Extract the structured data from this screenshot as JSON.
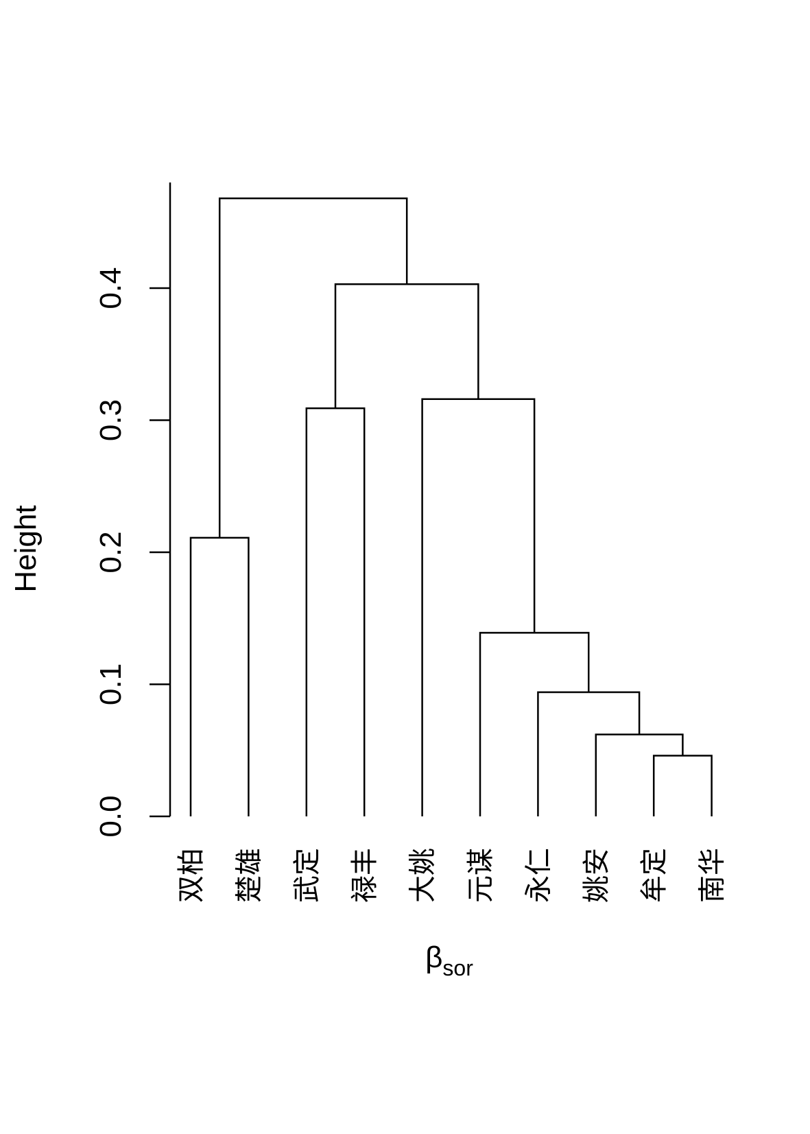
{
  "chart_data": {
    "type": "dendrogram",
    "ylabel": "Height",
    "xlabel_main": "β",
    "xlabel_sub": "sor",
    "ylim": [
      0,
      0.49
    ],
    "yticks": [
      0.0,
      0.1,
      0.2,
      0.3,
      0.4
    ],
    "ytick_labels": [
      "0.0",
      "0.1",
      "0.2",
      "0.3",
      "0.4"
    ],
    "leaves": [
      "双柏",
      "楚雄",
      "武定",
      "禄丰",
      "大姚",
      "元谋",
      "永仁",
      "姚安",
      "牟定",
      "南华"
    ],
    "merges": [
      {
        "left": [
          9
        ],
        "right": [
          10
        ],
        "height": 0.046
      },
      {
        "left": [
          8
        ],
        "right": [
          9,
          10
        ],
        "height": 0.062
      },
      {
        "left": [
          7
        ],
        "right": [
          8,
          9,
          10
        ],
        "height": 0.094
      },
      {
        "left": [
          6
        ],
        "right": [
          7,
          8,
          9,
          10
        ],
        "height": 0.139
      },
      {
        "left": [
          1
        ],
        "right": [
          2
        ],
        "height": 0.211
      },
      {
        "left": [
          3
        ],
        "right": [
          4
        ],
        "height": 0.309
      },
      {
        "left": [
          5
        ],
        "right": [
          6,
          7,
          8,
          9,
          10
        ],
        "height": 0.316
      },
      {
        "left": [
          3,
          4
        ],
        "right": [
          5,
          6,
          7,
          8,
          9,
          10
        ],
        "height": 0.403
      },
      {
        "left": [
          1,
          2
        ],
        "right": [
          3,
          4,
          5,
          6,
          7,
          8,
          9,
          10
        ],
        "height": 0.468
      }
    ]
  }
}
